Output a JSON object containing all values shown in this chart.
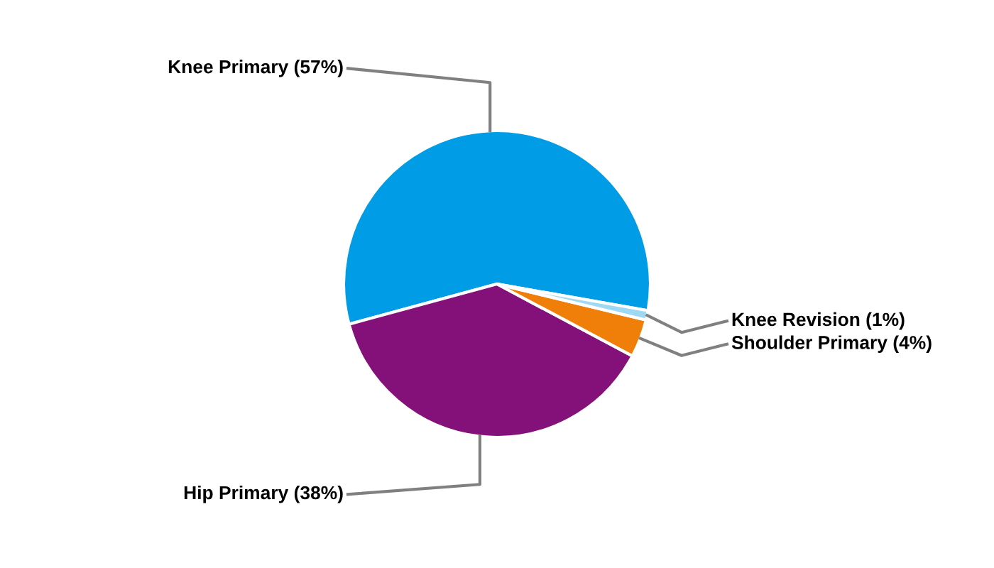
{
  "chart_data": {
    "type": "pie",
    "categories": [
      "Knee Primary (57%)",
      "Hip Primary (38%)",
      "Shoulder Primary (4%)",
      "Knee Revision (1%)"
    ],
    "values": [
      57,
      38,
      4,
      1
    ],
    "colors": [
      "#009de6",
      "#841079",
      "#f07f09",
      "#9fd8f2"
    ]
  }
}
